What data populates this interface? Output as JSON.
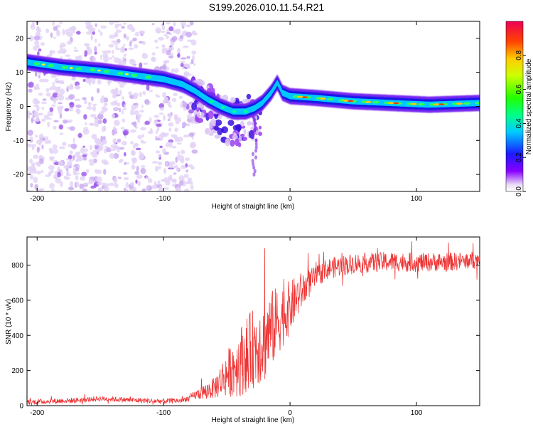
{
  "chart_data": [
    {
      "type": "heatmap",
      "title": "S199.2026.010.11.54.R21",
      "xlabel": "Height of straight line (km)",
      "ylabel": "Frequency (Hz)",
      "xlim": [
        -208,
        150
      ],
      "ylim": [
        -25,
        25
      ],
      "xticks": [
        -200,
        -100,
        0,
        100
      ],
      "yticks": [
        -20,
        -10,
        0,
        10,
        20
      ],
      "colorbar": {
        "label": "Normalized spectral amplitude",
        "range": [
          0,
          1
        ],
        "ticks": [
          0.0,
          0.2,
          0.4,
          0.6,
          0.8
        ]
      },
      "ridge_frequency": [
        [
          -208,
          13
        ],
        [
          -180,
          11.5
        ],
        [
          -150,
          10.5
        ],
        [
          -120,
          9
        ],
        [
          -100,
          8
        ],
        [
          -85,
          6.5
        ],
        [
          -75,
          4.5
        ],
        [
          -65,
          2
        ],
        [
          -55,
          0
        ],
        [
          -45,
          -1.5
        ],
        [
          -35,
          -1.5
        ],
        [
          -28,
          -0.5
        ],
        [
          -22,
          1
        ],
        [
          -15,
          4
        ],
        [
          -10,
          7
        ],
        [
          -6,
          4
        ],
        [
          0,
          3
        ],
        [
          20,
          2.5
        ],
        [
          50,
          1.5
        ],
        [
          80,
          1
        ],
        [
          110,
          0.5
        ],
        [
          150,
          1
        ]
      ]
    },
    {
      "type": "line",
      "xlabel": "Height of straight line (km)",
      "ylabel": "SNR (10 * v/v)",
      "xlim": [
        -208,
        150
      ],
      "ylim": [
        0,
        960
      ],
      "xticks": [
        -200,
        -100,
        0,
        100
      ],
      "yticks": [
        0,
        200,
        400,
        600,
        800
      ],
      "series": [
        {
          "name": "SNR",
          "color": "#ee3333",
          "trend": [
            [
              -208,
              20
            ],
            [
              -170,
              30
            ],
            [
              -150,
              40
            ],
            [
              -120,
              30
            ],
            [
              -100,
              25
            ],
            [
              -85,
              30
            ],
            [
              -75,
              60
            ],
            [
              -60,
              100
            ],
            [
              -50,
              180
            ],
            [
              -40,
              250
            ],
            [
              -30,
              320
            ],
            [
              -20,
              380
            ],
            [
              -10,
              480
            ],
            [
              0,
              560
            ],
            [
              10,
              660
            ],
            [
              20,
              730
            ],
            [
              30,
              780
            ],
            [
              50,
              810
            ],
            [
              80,
              820
            ],
            [
              100,
              815
            ],
            [
              130,
              820
            ],
            [
              150,
              830
            ]
          ],
          "noise_amplitude": [
            [
              -208,
              15
            ],
            [
              -80,
              15
            ],
            [
              -60,
              60
            ],
            [
              -40,
              200
            ],
            [
              -20,
              250
            ],
            [
              0,
              150
            ],
            [
              20,
              60
            ],
            [
              150,
              50
            ]
          ],
          "peak": [
            -20,
            895
          ]
        }
      ]
    }
  ]
}
